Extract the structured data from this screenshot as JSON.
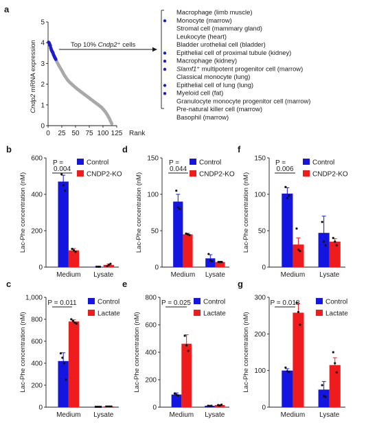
{
  "colors": {
    "control": "#1515e0",
    "treatment": "#ee1c1c",
    "rank_dot": "#a9a9a9",
    "top_dot": "#1c1ccc",
    "axis": "#1a1a1a"
  },
  "panel_a": {
    "letter": "a",
    "ylabel_html": "Cndp2 mRNA expression",
    "ylabel_italic": "Cndp2",
    "ylabel_rest": " mRNA expression",
    "xlabel": "Rank",
    "annotation_prefix": "Top 10% ",
    "annotation_italic": "Cndp2",
    "annotation_suffix": "⁺ cells",
    "cell_types": [
      {
        "text": "Macrophage (limb muscle)"
      },
      {
        "text": "Monocyte (marrow)"
      },
      {
        "text": "Stromal cell (mammary gland)"
      },
      {
        "text": "Leukocyte (heart)"
      },
      {
        "text": "Bladder urothelial cell (bladder)"
      },
      {
        "text": "Epithelial cell of proximal tubule (kidney)"
      },
      {
        "text": "Macrophage (kidney)"
      },
      {
        "italic": "Slamf1",
        "text": "⁺ multipotent progenitor cell (marrow)"
      },
      {
        "text": "Classical monocyte (lung)"
      },
      {
        "text": "Epithelial cell of lung (lung)"
      },
      {
        "text": "Myeloid cell (fat)"
      },
      {
        "text": "Granulocyte monocyte progenitor cell (marrow)"
      },
      {
        "text": "Pre-natural killer cell (marrow)"
      },
      {
        "text": "Basophil (marrow)"
      }
    ]
  },
  "chart_data": [
    {
      "id": "a",
      "type": "scatter",
      "title": "",
      "xlabel": "Rank",
      "ylabel": "Cndp2 mRNA expression",
      "xlim": [
        0,
        125
      ],
      "ylim": [
        0,
        5
      ],
      "xticks": [
        0,
        25,
        50,
        75,
        100,
        125
      ],
      "yticks": [
        0,
        1,
        2,
        3,
        4,
        5
      ],
      "top_n_highlighted": 14,
      "values": [
        4.02,
        3.98,
        3.92,
        3.85,
        3.74,
        3.66,
        3.6,
        3.55,
        3.5,
        3.42,
        3.36,
        3.3,
        3.25,
        3.2,
        3.14,
        3.08,
        3.03,
        2.98,
        2.93,
        2.88,
        2.84,
        2.79,
        2.75,
        2.7,
        2.66,
        2.61,
        2.56,
        2.51,
        2.46,
        2.42,
        2.38,
        2.34,
        2.3,
        2.26,
        2.22,
        2.19,
        2.16,
        2.13,
        2.1,
        2.07,
        2.05,
        2.03,
        2.0,
        1.98,
        1.96,
        1.93,
        1.91,
        1.88,
        1.86,
        1.84,
        1.82,
        1.79,
        1.77,
        1.75,
        1.73,
        1.71,
        1.69,
        1.67,
        1.65,
        1.63,
        1.61,
        1.59,
        1.57,
        1.55,
        1.53,
        1.51,
        1.49,
        1.47,
        1.45,
        1.43,
        1.41,
        1.39,
        1.37,
        1.35,
        1.33,
        1.31,
        1.29,
        1.27,
        1.25,
        1.23,
        1.21,
        1.19,
        1.17,
        1.15,
        1.13,
        1.11,
        1.09,
        1.07,
        1.05,
        1.03,
        1.01,
        0.99,
        0.97,
        0.95,
        0.93,
        0.91,
        0.89,
        0.86,
        0.83,
        0.8,
        0.77,
        0.74,
        0.71,
        0.68,
        0.64,
        0.6,
        0.56,
        0.52,
        0.47,
        0.42,
        0.37,
        0.32,
        0.26,
        0.2,
        0.15,
        0.1
      ]
    },
    {
      "id": "b",
      "type": "bar",
      "ylabel": "Lac-Phe concentration (nM)",
      "ylim": [
        0,
        600
      ],
      "yticks": [
        0,
        200,
        400,
        600
      ],
      "ytick_labels": [
        "0",
        "200",
        "400",
        "600"
      ],
      "categories": [
        "Medium",
        "Lysate"
      ],
      "series": [
        {
          "name": "Control",
          "values": [
            470,
            2
          ],
          "errors": [
            35,
            1
          ],
          "points": [
            [
              510,
              450,
              420
            ],
            [
              2,
              2,
              2
            ]
          ]
        },
        {
          "name": "CNDP2-KO",
          "values": [
            92,
            12
          ],
          "errors": [
            10,
            5
          ],
          "points": [
            [
              100,
              92,
              84
            ],
            [
              5,
              12,
              18
            ]
          ]
        }
      ],
      "pvalue": {
        "text": "P =",
        "value": "0.004",
        "stacked": true
      }
    },
    {
      "id": "d",
      "type": "bar",
      "ylabel": "Lac-Phe concentration (nM)",
      "ylim": [
        0,
        150
      ],
      "yticks": [
        0,
        50,
        100,
        150
      ],
      "ytick_labels": [
        "0",
        "50",
        "100",
        "150"
      ],
      "categories": [
        "Medium",
        "Lysate"
      ],
      "series": [
        {
          "name": "Control",
          "values": [
            90,
            12
          ],
          "errors": [
            10,
            5
          ],
          "points": [
            [
              105,
              82,
              80
            ],
            [
              18,
              9,
              8
            ]
          ]
        },
        {
          "name": "CNDP2-KO",
          "values": [
            45,
            7
          ],
          "errors": [
            1.5,
            1
          ],
          "points": [
            [
              46,
              45,
              44
            ],
            [
              7,
              7,
              7
            ]
          ]
        }
      ],
      "pvalue": {
        "text": "P =",
        "value": "0.044",
        "stacked": true
      }
    },
    {
      "id": "f",
      "type": "bar",
      "ylabel": "Lac-Phe concentration (nM)",
      "ylim": [
        0,
        150
      ],
      "yticks": [
        0,
        50,
        100,
        150
      ],
      "ytick_labels": [
        "0",
        "50",
        "100",
        "150"
      ],
      "categories": [
        "Medium",
        "Lysate"
      ],
      "series": [
        {
          "name": "Control",
          "values": [
            101,
            47
          ],
          "errors": [
            8,
            23
          ],
          "points": [
            [
              110,
              95,
              98
            ],
            [
              62,
              35,
              30
            ]
          ]
        },
        {
          "name": "CNDP2-KO",
          "values": [
            31,
            35
          ],
          "errors": [
            9,
            4
          ],
          "points": [
            [
              53,
              24,
              22
            ],
            [
              40,
              35,
              30
            ]
          ]
        }
      ],
      "pvalue": {
        "text": "P =",
        "value": "0.006",
        "stacked": true
      }
    },
    {
      "id": "c",
      "type": "bar",
      "ylabel": "Lac-Phe concentration (nM)",
      "ylim": [
        0,
        1000
      ],
      "yticks": [
        0,
        200,
        400,
        600,
        800,
        1000
      ],
      "ytick_labels": [
        "0",
        "200",
        "400",
        "600",
        "800",
        "1,000"
      ],
      "categories": [
        "Medium",
        "Lysate"
      ],
      "series": [
        {
          "name": "Control",
          "values": [
            420,
            3
          ],
          "errors": [
            75,
            1
          ],
          "points": [
            [
              490,
              450,
              400,
              250
            ],
            [
              3,
              3,
              3,
              3
            ]
          ]
        },
        {
          "name": "Lactate",
          "values": [
            780,
            6
          ],
          "errors": [
            15,
            1
          ],
          "points": [
            [
              800,
              785,
              770,
              760
            ],
            [
              6,
              6,
              6,
              6
            ]
          ]
        }
      ],
      "pvalue": {
        "text": "P =",
        "value": "0.011",
        "stacked": false
      }
    },
    {
      "id": "e",
      "type": "bar",
      "ylabel": "Lac-Phe concentration (nM)",
      "ylim": [
        0,
        800
      ],
      "yticks": [
        0,
        200,
        400,
        600,
        800
      ],
      "ytick_labels": [
        "0",
        "200",
        "400",
        "600",
        "800"
      ],
      "categories": [
        "Medium",
        "Lysate"
      ],
      "series": [
        {
          "name": "Control",
          "values": [
            92,
            10
          ],
          "errors": [
            12,
            3
          ],
          "points": [
            [
              100,
              90,
              85
            ],
            [
              10,
              9,
              10
            ]
          ]
        },
        {
          "name": "Lactate",
          "values": [
            462,
            15
          ],
          "errors": [
            65,
            3
          ],
          "points": [
            [
              520,
              450,
              410
            ],
            [
              15,
              12,
              18
            ]
          ]
        }
      ],
      "pvalue": {
        "text": "P =",
        "value": "0.025",
        "stacked": false
      }
    },
    {
      "id": "g",
      "type": "bar",
      "ylabel": "Lac-Phe concentration (nM)",
      "ylim": [
        0,
        300
      ],
      "yticks": [
        0,
        100,
        200,
        300
      ],
      "ytick_labels": [
        "0",
        "100",
        "200",
        "300"
      ],
      "categories": [
        "Medium",
        "Lysate"
      ],
      "series": [
        {
          "name": "Control",
          "values": [
            100,
            48
          ],
          "errors": [
            5,
            22
          ],
          "points": [
            [
              108,
              98,
              96
            ],
            [
              60,
              30,
              28
            ]
          ]
        },
        {
          "name": "Lactate",
          "values": [
            258,
            115
          ],
          "errors": [
            25,
            20
          ],
          "points": [
            [
              285,
              260,
              225
            ],
            [
              150,
              120,
              95
            ]
          ]
        }
      ],
      "pvalue": {
        "text": "P =",
        "value": "0.018",
        "stacked": false
      }
    }
  ]
}
